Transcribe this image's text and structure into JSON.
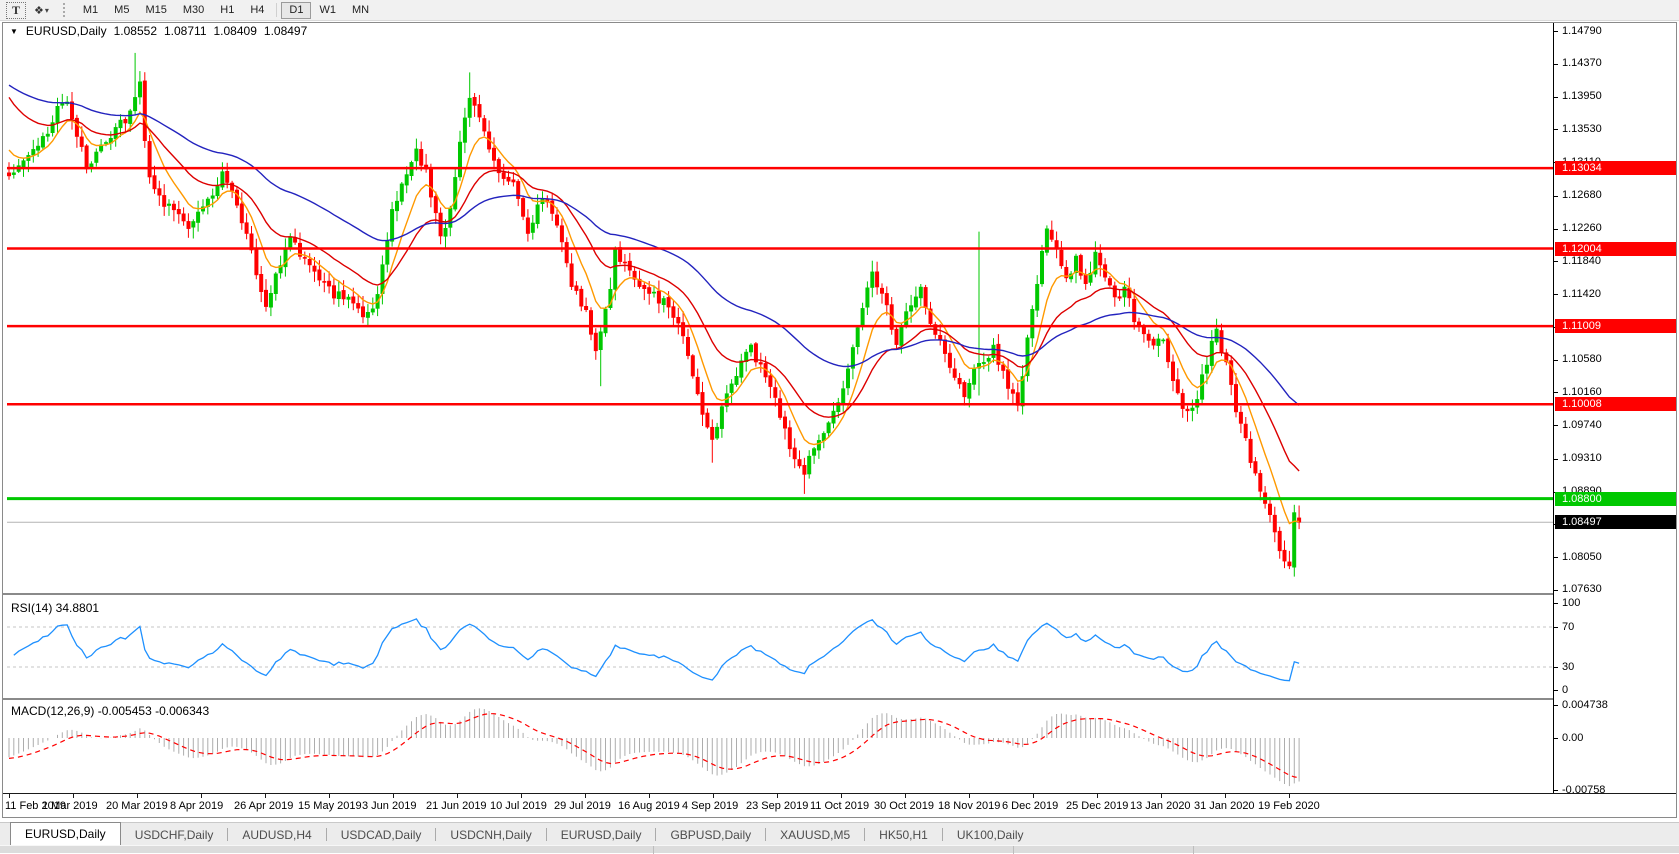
{
  "toolbar": {
    "text_tool_label": "T",
    "indicator_icon": "objects-indicator-icon",
    "timeframes": [
      "M1",
      "M5",
      "M15",
      "M30",
      "H1",
      "H4",
      "D1",
      "W1",
      "MN"
    ],
    "active_timeframe": "D1"
  },
  "header": {
    "symbol": "EURUSD,Daily",
    "open": "1.08552",
    "high": "1.08711",
    "low": "1.08409",
    "close": "1.08497"
  },
  "price_axis": {
    "ticks": [
      "1.14790",
      "1.14370",
      "1.13950",
      "1.13530",
      "1.13110",
      "1.12680",
      "1.12260",
      "1.11840",
      "1.11420",
      "1.11000",
      "1.10580",
      "1.10160",
      "1.09740",
      "1.09310",
      "1.08890",
      "1.08470",
      "1.08050",
      "1.07630"
    ],
    "tags": [
      {
        "text": "1.13034",
        "price": 1.13034,
        "bg": "#ff0000",
        "fg": "#ffffff"
      },
      {
        "text": "1.12004",
        "price": 1.12004,
        "bg": "#ff0000",
        "fg": "#ffffff"
      },
      {
        "text": "1.11009",
        "price": 1.11009,
        "bg": "#ff0000",
        "fg": "#ffffff"
      },
      {
        "text": "1.10008",
        "price": 1.10008,
        "bg": "#ff0000",
        "fg": "#ffffff"
      },
      {
        "text": "1.08800",
        "price": 1.088,
        "bg": "#00c800",
        "fg": "#ffffff"
      },
      {
        "text": "1.08497",
        "price": 1.08497,
        "bg": "#000000",
        "fg": "#ffffff"
      }
    ]
  },
  "dates": [
    "11 Feb 2019",
    "1 Mar 2019",
    "20 Mar 2019",
    "8 Apr 2019",
    "26 Apr 2019",
    "15 May 2019",
    "3 Jun 2019",
    "21 Jun 2019",
    "10 Jul 2019",
    "29 Jul 2019",
    "16 Aug 2019",
    "4 Sep 2019",
    "23 Sep 2019",
    "11 Oct 2019",
    "30 Oct 2019",
    "18 Nov 2019",
    "6 Dec 2019",
    "25 Dec 2019",
    "13 Jan 2020",
    "31 Jan 2020",
    "19 Feb 2020"
  ],
  "rsi": {
    "label": "RSI(14) 34.8801",
    "period": 14,
    "current_value": 34.8801,
    "axis": [
      "100",
      "70",
      "30",
      "0"
    ],
    "level_values": [
      70,
      30
    ],
    "line_color": "#1e90ff"
  },
  "macd": {
    "label": "MACD(12,26,9) -0.005453 -0.006343",
    "fast": 12,
    "slow": 26,
    "signal": 9,
    "macd_value": -0.005453,
    "signal_value": -0.006343,
    "axis_top": "0.004738",
    "axis_zero": "0.00",
    "axis_bottom": "-0.00758",
    "histogram_color": "#adadad",
    "signal_color": "#ff0000"
  },
  "tabs": [
    {
      "label": "EURUSD,Daily",
      "active": true
    },
    {
      "label": "USDCHF,Daily",
      "active": false
    },
    {
      "label": "AUDUSD,H4",
      "active": false
    },
    {
      "label": "USDCAD,Daily",
      "active": false
    },
    {
      "label": "USDCNH,Daily",
      "active": false
    },
    {
      "label": "EURUSD,Daily",
      "active": false
    },
    {
      "label": "GBPUSD,Daily",
      "active": false
    },
    {
      "label": "XAUUSD,M5",
      "active": false
    },
    {
      "label": "HK50,H1",
      "active": false
    },
    {
      "label": "UK100,Daily",
      "active": false
    }
  ],
  "chart_data": {
    "type": "candlestick",
    "title": "EURUSD,Daily",
    "bars": 267,
    "y_axis_range": [
      1.0763,
      1.1479
    ],
    "x_axis_dates": [
      "11 Feb 2019",
      "1 Mar 2019",
      "20 Mar 2019",
      "8 Apr 2019",
      "26 Apr 2019",
      "15 May 2019",
      "3 Jun 2019",
      "21 Jun 2019",
      "10 Jul 2019",
      "29 Jul 2019",
      "16 Aug 2019",
      "4 Sep 2019",
      "23 Sep 2019",
      "11 Oct 2019",
      "30 Oct 2019",
      "18 Nov 2019",
      "6 Dec 2019",
      "25 Dec 2019",
      "13 Jan 2020",
      "31 Jan 2020",
      "19 Feb 2020"
    ],
    "up_color": "#00c800",
    "down_color": "#ff0000",
    "current_ohlc": {
      "o": 1.08552,
      "h": 1.08711,
      "l": 1.08409,
      "c": 1.08497
    },
    "close_anchors": [
      [
        0,
        1.129
      ],
      [
        3,
        1.1312
      ],
      [
        6,
        1.133
      ],
      [
        9,
        1.1362
      ],
      [
        11,
        1.1392
      ],
      [
        13,
        1.1372
      ],
      [
        16,
        1.1302
      ],
      [
        18,
        1.1322
      ],
      [
        21,
        1.1348
      ],
      [
        24,
        1.1368
      ],
      [
        26,
        1.1392
      ],
      [
        27,
        1.1408
      ],
      [
        28,
        1.1332
      ],
      [
        29,
        1.1292
      ],
      [
        31,
        1.1264
      ],
      [
        34,
        1.125
      ],
      [
        37,
        1.1232
      ],
      [
        40,
        1.1256
      ],
      [
        44,
        1.1292
      ],
      [
        47,
        1.1262
      ],
      [
        50,
        1.1192
      ],
      [
        53,
        1.1126
      ],
      [
        56,
        1.1182
      ],
      [
        58,
        1.1216
      ],
      [
        61,
        1.1186
      ],
      [
        64,
        1.1162
      ],
      [
        67,
        1.1142
      ],
      [
        70,
        1.1136
      ],
      [
        73,
        1.1116
      ],
      [
        76,
        1.1136
      ],
      [
        79,
        1.1246
      ],
      [
        82,
        1.1292
      ],
      [
        84,
        1.1326
      ],
      [
        86,
        1.1296
      ],
      [
        89,
        1.1212
      ],
      [
        91,
        1.1252
      ],
      [
        93,
        1.1332
      ],
      [
        95,
        1.1392
      ],
      [
        97,
        1.1372
      ],
      [
        99,
        1.1332
      ],
      [
        101,
        1.1302
      ],
      [
        104,
        1.1282
      ],
      [
        107,
        1.1226
      ],
      [
        110,
        1.1266
      ],
      [
        113,
        1.1232
      ],
      [
        116,
        1.1156
      ],
      [
        119,
        1.1116
      ],
      [
        121,
        1.1072
      ],
      [
        122,
        1.1088
      ],
      [
        124,
        1.1152
      ],
      [
        125,
        1.1198
      ],
      [
        127,
        1.1176
      ],
      [
        130,
        1.1156
      ],
      [
        133,
        1.114
      ],
      [
        136,
        1.1126
      ],
      [
        139,
        1.1086
      ],
      [
        141,
        1.1042
      ],
      [
        143,
        1.0988
      ],
      [
        145,
        1.0956
      ],
      [
        147,
        1.0992
      ],
      [
        150,
        1.1042
      ],
      [
        153,
        1.1072
      ],
      [
        156,
        1.1036
      ],
      [
        158,
        1.1008
      ],
      [
        161,
        1.0946
      ],
      [
        164,
        1.0906
      ],
      [
        165,
        1.093
      ],
      [
        168,
        1.0968
      ],
      [
        171,
        1.1002
      ],
      [
        174,
        1.1076
      ],
      [
        178,
        1.1168
      ],
      [
        180,
        1.1142
      ],
      [
        183,
        1.1084
      ],
      [
        186,
        1.1132
      ],
      [
        188,
        1.1148
      ],
      [
        191,
        1.1092
      ],
      [
        194,
        1.1052
      ],
      [
        197,
        1.1008
      ],
      [
        200,
        1.1056
      ],
      [
        203,
        1.1072
      ],
      [
        206,
        1.1022
      ],
      [
        208,
        1.0998
      ],
      [
        209,
        1.1042
      ],
      [
        211,
        1.1122
      ],
      [
        213,
        1.1192
      ],
      [
        214,
        1.1232
      ],
      [
        216,
        1.1202
      ],
      [
        218,
        1.1162
      ],
      [
        220,
        1.1186
      ],
      [
        222,
        1.1156
      ],
      [
        224,
        1.1192
      ],
      [
        226,
        1.1166
      ],
      [
        228,
        1.1132
      ],
      [
        230,
        1.1152
      ],
      [
        232,
        1.1112
      ],
      [
        235,
        1.1076
      ],
      [
        238,
        1.1086
      ],
      [
        240,
        1.1036
      ],
      [
        242,
        1.1002
      ],
      [
        244,
        1.0992
      ],
      [
        246,
        1.1036
      ],
      [
        248,
        1.1076
      ],
      [
        249,
        1.1092
      ],
      [
        251,
        1.1056
      ],
      [
        253,
        1.0992
      ],
      [
        255,
        1.0952
      ],
      [
        257,
        1.0906
      ],
      [
        259,
        1.0872
      ],
      [
        261,
        1.0834
      ],
      [
        263,
        1.0802
      ],
      [
        264,
        1.0788
      ],
      [
        265,
        1.0862
      ],
      [
        266,
        1.08497
      ]
    ],
    "special_bars": {
      "26": {
        "h": 1.1451
      },
      "95": {
        "h": 1.1426
      },
      "122": {
        "l": 1.1024
      },
      "145": {
        "l": 1.0926
      },
      "164": {
        "l": 1.0886
      },
      "200": {
        "h": 1.1222,
        "l": 1.1012
      },
      "265": {
        "o": 1.0792,
        "h": 1.0872,
        "l": 1.078,
        "c": 1.0862
      },
      "266": {
        "o": 1.08552,
        "h": 1.08711,
        "l": 1.08409,
        "c": 1.08497
      }
    },
    "moving_averages": [
      {
        "period": 8,
        "color": "#ff9900",
        "seed": 1.1336
      },
      {
        "period": 21,
        "color": "#dd0000",
        "seed": 1.1404
      },
      {
        "period": 55,
        "color": "#2323be",
        "seed": 1.1414
      }
    ],
    "horizontal_levels": [
      {
        "price": 1.13034,
        "color": "#ff0000",
        "width": 2.5
      },
      {
        "price": 1.12004,
        "color": "#ff0000",
        "width": 2.5
      },
      {
        "price": 1.11009,
        "color": "#ff0000",
        "width": 2.5
      },
      {
        "price": 1.10008,
        "color": "#ff0000",
        "width": 2.5
      },
      {
        "price": 1.088,
        "color": "#00c800",
        "width": 3
      }
    ],
    "current_price_line": {
      "price": 1.08497,
      "color": "#b3b3b3"
    }
  },
  "status_dividers": [
    653,
    1013,
    1193
  ]
}
